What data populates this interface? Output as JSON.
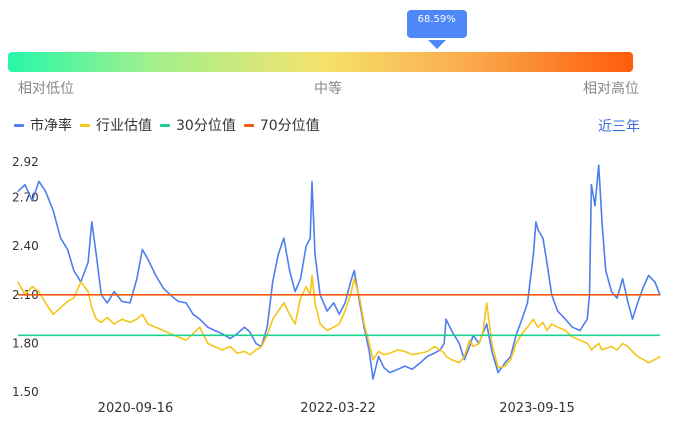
{
  "percentile_badge": "68.59%",
  "percentile_value": 68.59,
  "gradient": {
    "low_label": "相对低位",
    "mid_label": "中等",
    "high_label": "相对高位"
  },
  "legend": [
    {
      "label": "市净率",
      "color": "#4e7ef0"
    },
    {
      "label": "行业估值",
      "color": "#f5c518"
    },
    {
      "label": "30分位值",
      "color": "#1ad18f"
    },
    {
      "label": "70分位值",
      "color": "#f05a14"
    }
  ],
  "period_link": "近三年",
  "chart_data": {
    "type": "line",
    "title": "",
    "xlabel": "",
    "ylabel": "",
    "ylim": [
      1.5,
      2.92
    ],
    "y_ticks": [
      "2.92",
      "2.70",
      "2.40",
      "2.10",
      "1.80",
      "1.50"
    ],
    "x_ticks": [
      "2020-09-16",
      "2022-03-22",
      "2023-09-15"
    ],
    "x_range": [
      "2019-11-01",
      "2024-08-15"
    ],
    "grid": false,
    "legend_position": "top-left",
    "series": [
      {
        "name": "市净率",
        "color": "#4e7ef0",
        "points": [
          [
            "2019-11-01",
            2.74
          ],
          [
            "2019-11-20",
            2.78
          ],
          [
            "2019-12-10",
            2.68
          ],
          [
            "2019-12-28",
            2.8
          ],
          [
            "2020-01-15",
            2.74
          ],
          [
            "2020-02-05",
            2.62
          ],
          [
            "2020-02-25",
            2.45
          ],
          [
            "2020-03-15",
            2.38
          ],
          [
            "2020-04-01",
            2.25
          ],
          [
            "2020-04-20",
            2.18
          ],
          [
            "2020-05-10",
            2.3
          ],
          [
            "2020-05-20",
            2.55
          ],
          [
            "2020-06-01",
            2.35
          ],
          [
            "2020-06-15",
            2.1
          ],
          [
            "2020-07-01",
            2.05
          ],
          [
            "2020-07-20",
            2.12
          ],
          [
            "2020-08-10",
            2.06
          ],
          [
            "2020-09-01",
            2.05
          ],
          [
            "2020-09-20",
            2.2
          ],
          [
            "2020-10-05",
            2.38
          ],
          [
            "2020-10-20",
            2.32
          ],
          [
            "2020-11-10",
            2.22
          ],
          [
            "2020-12-01",
            2.14
          ],
          [
            "2020-12-20",
            2.1
          ],
          [
            "2021-01-10",
            2.06
          ],
          [
            "2021-02-01",
            2.05
          ],
          [
            "2021-02-20",
            1.98
          ],
          [
            "2021-03-10",
            1.95
          ],
          [
            "2021-04-01",
            1.9
          ],
          [
            "2021-04-20",
            1.88
          ],
          [
            "2021-05-10",
            1.86
          ],
          [
            "2021-06-01",
            1.83
          ],
          [
            "2021-06-20",
            1.86
          ],
          [
            "2021-07-10",
            1.9
          ],
          [
            "2021-07-25",
            1.87
          ],
          [
            "2021-08-10",
            1.8
          ],
          [
            "2021-08-25",
            1.78
          ],
          [
            "2021-09-10",
            1.9
          ],
          [
            "2021-09-25",
            2.18
          ],
          [
            "2021-10-10",
            2.35
          ],
          [
            "2021-10-25",
            2.45
          ],
          [
            "2021-11-10",
            2.25
          ],
          [
            "2021-11-25",
            2.12
          ],
          [
            "2021-12-10",
            2.2
          ],
          [
            "2021-12-25",
            2.4
          ],
          [
            "2022-01-05",
            2.45
          ],
          [
            "2022-01-10",
            2.8
          ],
          [
            "2022-01-18",
            2.35
          ],
          [
            "2022-02-01",
            2.1
          ],
          [
            "2022-02-20",
            2.0
          ],
          [
            "2022-03-10",
            2.05
          ],
          [
            "2022-03-25",
            1.98
          ],
          [
            "2022-04-10",
            2.05
          ],
          [
            "2022-04-25",
            2.18
          ],
          [
            "2022-05-05",
            2.25
          ],
          [
            "2022-05-20",
            2.05
          ],
          [
            "2022-06-01",
            1.9
          ],
          [
            "2022-06-15",
            1.75
          ],
          [
            "2022-06-25",
            1.58
          ],
          [
            "2022-07-10",
            1.72
          ],
          [
            "2022-07-25",
            1.65
          ],
          [
            "2022-08-10",
            1.62
          ],
          [
            "2022-09-01",
            1.64
          ],
          [
            "2022-09-20",
            1.66
          ],
          [
            "2022-10-10",
            1.64
          ],
          [
            "2022-11-01",
            1.68
          ],
          [
            "2022-11-20",
            1.72
          ],
          [
            "2022-12-10",
            1.74
          ],
          [
            "2022-12-25",
            1.76
          ],
          [
            "2023-01-05",
            1.8
          ],
          [
            "2023-01-10",
            1.95
          ],
          [
            "2023-01-25",
            1.88
          ],
          [
            "2023-02-15",
            1.8
          ],
          [
            "2023-03-01",
            1.7
          ],
          [
            "2023-03-15",
            1.78
          ],
          [
            "2023-03-25",
            1.85
          ],
          [
            "2023-04-10",
            1.8
          ],
          [
            "2023-04-20",
            1.86
          ],
          [
            "2023-05-01",
            1.92
          ],
          [
            "2023-05-15",
            1.75
          ],
          [
            "2023-06-01",
            1.62
          ],
          [
            "2023-06-20",
            1.68
          ],
          [
            "2023-07-05",
            1.72
          ],
          [
            "2023-07-20",
            1.85
          ],
          [
            "2023-08-05",
            1.95
          ],
          [
            "2023-08-20",
            2.05
          ],
          [
            "2023-09-05",
            2.35
          ],
          [
            "2023-09-12",
            2.55
          ],
          [
            "2023-09-18",
            2.5
          ],
          [
            "2023-10-01",
            2.45
          ],
          [
            "2023-10-12",
            2.3
          ],
          [
            "2023-10-25",
            2.1
          ],
          [
            "2023-11-10",
            2.0
          ],
          [
            "2023-12-01",
            1.95
          ],
          [
            "2023-12-20",
            1.9
          ],
          [
            "2024-01-10",
            1.88
          ],
          [
            "2024-01-30",
            1.95
          ],
          [
            "2024-02-05",
            2.1
          ],
          [
            "2024-02-10",
            2.78
          ],
          [
            "2024-02-20",
            2.65
          ],
          [
            "2024-03-01",
            2.9
          ],
          [
            "2024-03-10",
            2.55
          ],
          [
            "2024-03-20",
            2.25
          ],
          [
            "2024-04-05",
            2.12
          ],
          [
            "2024-04-20",
            2.08
          ],
          [
            "2024-05-05",
            2.2
          ],
          [
            "2024-05-20",
            2.05
          ],
          [
            "2024-06-01",
            1.95
          ],
          [
            "2024-06-15",
            2.05
          ],
          [
            "2024-07-01",
            2.15
          ],
          [
            "2024-07-15",
            2.22
          ],
          [
            "2024-08-01",
            2.18
          ],
          [
            "2024-08-15",
            2.1
          ]
        ]
      },
      {
        "name": "行业估值",
        "color": "#f5c518",
        "points": [
          [
            "2019-11-01",
            2.18
          ],
          [
            "2019-11-20",
            2.1
          ],
          [
            "2019-12-10",
            2.15
          ],
          [
            "2019-12-28",
            2.12
          ],
          [
            "2020-01-15",
            2.05
          ],
          [
            "2020-02-05",
            1.98
          ],
          [
            "2020-02-25",
            2.02
          ],
          [
            "2020-03-15",
            2.06
          ],
          [
            "2020-04-01",
            2.08
          ],
          [
            "2020-04-20",
            2.18
          ],
          [
            "2020-05-10",
            2.12
          ],
          [
            "2020-05-20",
            2.02
          ],
          [
            "2020-06-01",
            1.95
          ],
          [
            "2020-06-15",
            1.93
          ],
          [
            "2020-07-01",
            1.96
          ],
          [
            "2020-07-20",
            1.92
          ],
          [
            "2020-08-10",
            1.95
          ],
          [
            "2020-09-01",
            1.93
          ],
          [
            "2020-09-20",
            1.95
          ],
          [
            "2020-10-05",
            1.98
          ],
          [
            "2020-10-20",
            1.92
          ],
          [
            "2020-11-10",
            1.9
          ],
          [
            "2020-12-01",
            1.88
          ],
          [
            "2020-12-20",
            1.86
          ],
          [
            "2021-01-10",
            1.84
          ],
          [
            "2021-02-01",
            1.82
          ],
          [
            "2021-02-20",
            1.86
          ],
          [
            "2021-03-10",
            1.9
          ],
          [
            "2021-04-01",
            1.8
          ],
          [
            "2021-04-20",
            1.78
          ],
          [
            "2021-05-10",
            1.76
          ],
          [
            "2021-06-01",
            1.78
          ],
          [
            "2021-06-20",
            1.74
          ],
          [
            "2021-07-10",
            1.75
          ],
          [
            "2021-07-25",
            1.73
          ],
          [
            "2021-08-10",
            1.76
          ],
          [
            "2021-08-25",
            1.78
          ],
          [
            "2021-09-10",
            1.85
          ],
          [
            "2021-09-25",
            1.95
          ],
          [
            "2021-10-10",
            2.0
          ],
          [
            "2021-10-25",
            2.05
          ],
          [
            "2021-11-10",
            1.98
          ],
          [
            "2021-11-25",
            1.92
          ],
          [
            "2021-12-10",
            2.08
          ],
          [
            "2021-12-25",
            2.15
          ],
          [
            "2022-01-05",
            2.1
          ],
          [
            "2022-01-10",
            2.22
          ],
          [
            "2022-01-18",
            2.05
          ],
          [
            "2022-02-01",
            1.92
          ],
          [
            "2022-02-20",
            1.88
          ],
          [
            "2022-03-10",
            1.9
          ],
          [
            "2022-03-25",
            1.92
          ],
          [
            "2022-04-10",
            2.0
          ],
          [
            "2022-04-25",
            2.1
          ],
          [
            "2022-05-05",
            2.2
          ],
          [
            "2022-05-20",
            2.08
          ],
          [
            "2022-06-01",
            1.92
          ],
          [
            "2022-06-15",
            1.8
          ],
          [
            "2022-06-25",
            1.7
          ],
          [
            "2022-07-10",
            1.75
          ],
          [
            "2022-07-25",
            1.73
          ],
          [
            "2022-08-10",
            1.74
          ],
          [
            "2022-09-01",
            1.76
          ],
          [
            "2022-09-20",
            1.75
          ],
          [
            "2022-10-10",
            1.73
          ],
          [
            "2022-11-01",
            1.74
          ],
          [
            "2022-11-20",
            1.75
          ],
          [
            "2022-12-10",
            1.78
          ],
          [
            "2022-12-25",
            1.76
          ],
          [
            "2023-01-05",
            1.74
          ],
          [
            "2023-01-10",
            1.72
          ],
          [
            "2023-01-25",
            1.7
          ],
          [
            "2023-02-15",
            1.68
          ],
          [
            "2023-03-01",
            1.72
          ],
          [
            "2023-03-15",
            1.82
          ],
          [
            "2023-03-25",
            1.78
          ],
          [
            "2023-04-10",
            1.8
          ],
          [
            "2023-04-20",
            1.86
          ],
          [
            "2023-05-01",
            2.05
          ],
          [
            "2023-05-15",
            1.8
          ],
          [
            "2023-06-01",
            1.65
          ],
          [
            "2023-06-20",
            1.66
          ],
          [
            "2023-07-05",
            1.7
          ],
          [
            "2023-07-20",
            1.8
          ],
          [
            "2023-08-05",
            1.86
          ],
          [
            "2023-08-20",
            1.9
          ],
          [
            "2023-09-05",
            1.95
          ],
          [
            "2023-09-12",
            1.92
          ],
          [
            "2023-09-18",
            1.9
          ],
          [
            "2023-10-01",
            1.93
          ],
          [
            "2023-10-12",
            1.88
          ],
          [
            "2023-10-25",
            1.92
          ],
          [
            "2023-11-10",
            1.9
          ],
          [
            "2023-12-01",
            1.88
          ],
          [
            "2023-12-20",
            1.84
          ],
          [
            "2024-01-10",
            1.82
          ],
          [
            "2024-01-30",
            1.8
          ],
          [
            "2024-02-05",
            1.78
          ],
          [
            "2024-02-10",
            1.76
          ],
          [
            "2024-02-20",
            1.78
          ],
          [
            "2024-03-01",
            1.8
          ],
          [
            "2024-03-10",
            1.76
          ],
          [
            "2024-03-20",
            1.77
          ],
          [
            "2024-04-05",
            1.78
          ],
          [
            "2024-04-20",
            1.76
          ],
          [
            "2024-05-05",
            1.8
          ],
          [
            "2024-05-20",
            1.78
          ],
          [
            "2024-06-01",
            1.75
          ],
          [
            "2024-06-15",
            1.72
          ],
          [
            "2024-07-01",
            1.7
          ],
          [
            "2024-07-15",
            1.68
          ],
          [
            "2024-08-01",
            1.7
          ],
          [
            "2024-08-15",
            1.72
          ]
        ]
      }
    ],
    "reference_lines": [
      {
        "name": "30分位值",
        "value": 1.85,
        "color": "#1ad18f"
      },
      {
        "name": "70分位值",
        "value": 2.1,
        "color": "#f05a14"
      }
    ]
  }
}
